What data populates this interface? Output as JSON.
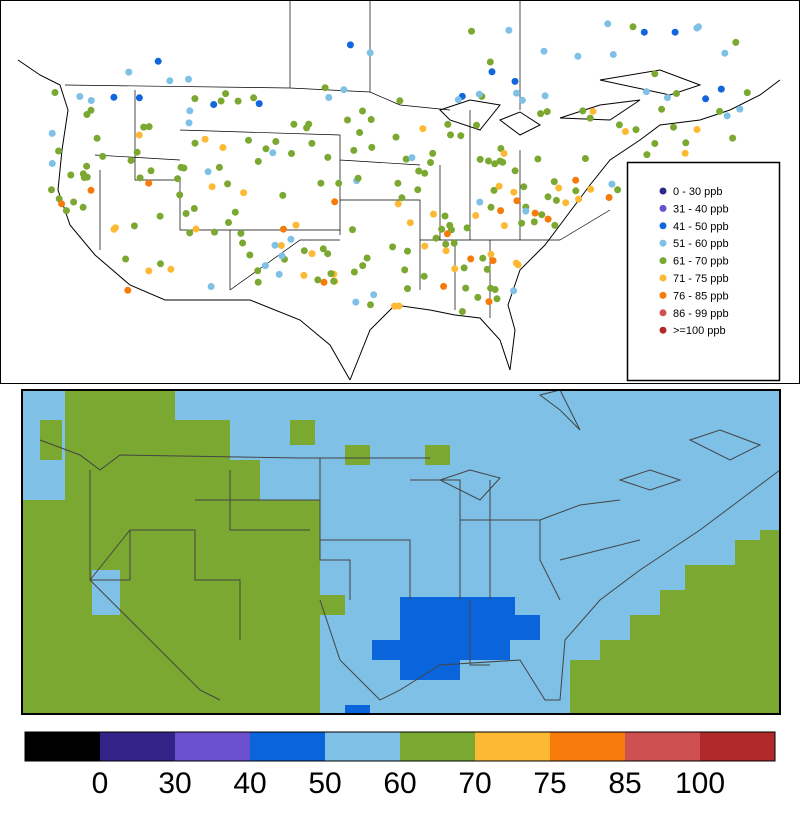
{
  "legend": {
    "items": [
      {
        "label": "0 - 30  ppb",
        "color": "#2d2a8c"
      },
      {
        "label": "31 - 40  ppb",
        "color": "#6a4fcf"
      },
      {
        "label": "41 - 50  ppb",
        "color": "#1166dd"
      },
      {
        "label": "51 - 60  ppb",
        "color": "#7ec0e6"
      },
      {
        "label": "61 - 70  ppb",
        "color": "#7aa831"
      },
      {
        "label": "71 - 75  ppb",
        "color": "#fdb933"
      },
      {
        "label": "76 - 85  ppb",
        "color": "#f77b0a"
      },
      {
        "label": "86 - 99  ppb",
        "color": "#cf5050"
      },
      {
        "label": ">=100  ppb",
        "color": "#b12a2a"
      }
    ]
  },
  "colorbar": {
    "colors": [
      "#000000",
      "#332288",
      "#6a4fcf",
      "#0a64dc",
      "#7ec0e6",
      "#7aa831",
      "#fdb933",
      "#f77b0a",
      "#cf5050",
      "#b12a2a"
    ],
    "ticks": [
      0,
      30,
      40,
      50,
      60,
      70,
      75,
      85,
      100
    ]
  }
}
